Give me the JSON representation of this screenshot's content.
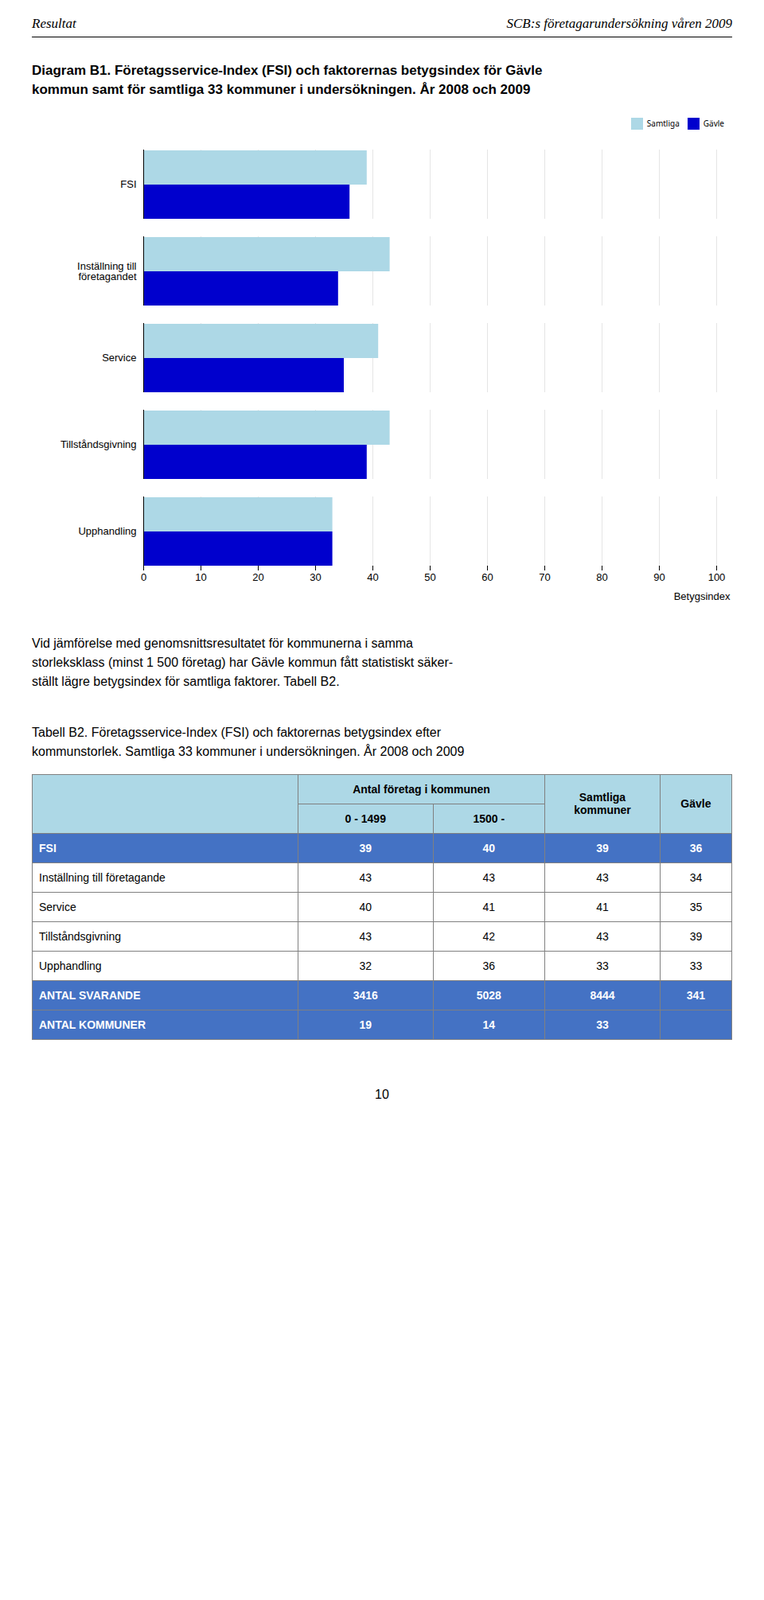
{
  "header_left": "Resultat",
  "header_right": "SCB:s företagarundersökning våren 2009",
  "chart_data": {
    "type": "bar",
    "orientation": "horizontal",
    "title": "Diagram B1. Företagsservice-Index (FSI) och faktorernas betygsindex för Gävle\nkommun samt för samtliga 33 kommuner i undersökningen. År 2008 och 2009",
    "categories": [
      "FSI",
      "Inställning till\nföretagandet",
      "Service",
      "Tillståndsgivning",
      "Upphandling"
    ],
    "series": [
      {
        "name": "Samtliga",
        "color": "#add8e6",
        "values": [
          39,
          43,
          41,
          43,
          33
        ]
      },
      {
        "name": "Gävle",
        "color": "#0000cd",
        "values": [
          36,
          34,
          35,
          39,
          33
        ]
      }
    ],
    "xlabel": "Betygsindex",
    "xlim": [
      0,
      100
    ],
    "xticks": [
      0,
      10,
      20,
      30,
      40,
      50,
      60,
      70,
      80,
      90,
      100
    ],
    "grid": true,
    "legend": "upper right"
  },
  "body_text": "Vid jämförelse med genomsnittsresultatet för kommunerna i samma\nstorleksklass (minst 1 500 företag) har Gävle kommun fått statistiskt säker-\nställt lägre betygsindex för samtliga faktorer. Tabell B2.",
  "table": {
    "title": "Tabell B2. Företagsservice-Index (FSI) och faktorernas betygsindex efter\nkommunstorlek. Samtliga 33 kommuner i undersökningen. År 2008 och 2009",
    "columns": [
      {
        "group": "Antal företag i kommunen",
        "label": "0 - 1499"
      },
      {
        "group": "Antal företag i kommunen",
        "label": "1500 -"
      },
      {
        "group": "Samtliga\nkommuner"
      },
      {
        "group": "Gävle"
      }
    ],
    "rows": [
      {
        "label": "FSI",
        "values": [
          39,
          40,
          39,
          36
        ]
      },
      {
        "label": "Inställning till företagande",
        "values": [
          43,
          43,
          43,
          34
        ]
      },
      {
        "label": "Service",
        "values": [
          40,
          41,
          41,
          35
        ]
      },
      {
        "label": "Tillståndsgivning",
        "values": [
          43,
          42,
          43,
          39
        ]
      },
      {
        "label": "Upphandling",
        "values": [
          32,
          36,
          33,
          33
        ]
      },
      {
        "label": "ANTAL SVARANDE",
        "values": [
          3416,
          5028,
          8444,
          341
        ]
      },
      {
        "label": "ANTAL KOMMUNER",
        "values": [
          19,
          14,
          33,
          null
        ]
      }
    ]
  },
  "page_number": "10"
}
